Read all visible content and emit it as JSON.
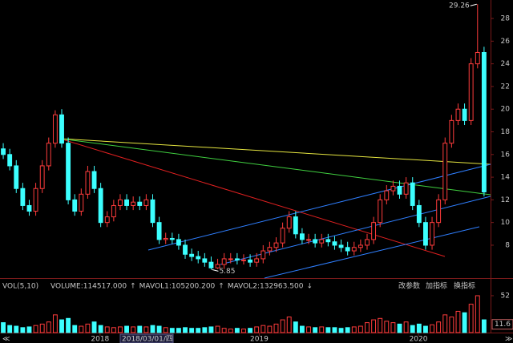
{
  "chart_data": {
    "type": "candlestick",
    "up_color": "#ff3c3c",
    "down_color": "#3cffff",
    "categories": [
      null,
      null,
      null,
      null,
      null,
      null,
      null,
      null,
      null,
      null,
      null,
      null,
      null,
      null,
      null,
      null,
      null,
      null,
      null,
      null,
      null,
      null,
      null,
      null,
      null,
      null,
      null,
      null,
      null,
      null,
      null,
      null,
      null,
      null,
      null,
      null,
      null,
      null,
      null,
      null,
      null,
      null,
      null,
      null,
      null,
      null,
      null,
      null,
      null,
      null,
      null,
      null,
      null,
      null,
      null,
      null,
      null,
      null,
      null,
      null,
      null,
      null,
      null,
      null,
      null,
      null,
      null,
      null,
      null,
      null,
      null,
      null,
      null,
      null,
      null
    ],
    "open": [
      16.5,
      16,
      15,
      13,
      11.5,
      11,
      13,
      15,
      17,
      19.5,
      17,
      12,
      11,
      12.5,
      14.5,
      13,
      10,
      10.5,
      11.5,
      12,
      11.5,
      11.8,
      11.5,
      12,
      10,
      8.5,
      8.6,
      8.5,
      8,
      7.2,
      7,
      6.8,
      6.5,
      6,
      6.3,
      6.8,
      6.8,
      6.7,
      6.7,
      6.5,
      6.8,
      7.5,
      7.8,
      8.2,
      9.5,
      10.5,
      9,
      8.5,
      8.5,
      8.2,
      8.5,
      8.3,
      8,
      7.8,
      7.5,
      7.8,
      8,
      8.5,
      10,
      12,
      12.8,
      13.2,
      12.5,
      13.5,
      11.5,
      10,
      8,
      10,
      12,
      17,
      19,
      20,
      19,
      24,
      25
    ],
    "high": [
      17,
      16.5,
      15.5,
      13.5,
      12,
      13.5,
      15.5,
      17.5,
      19.9,
      20,
      17.5,
      12.5,
      13,
      15,
      15,
      13.5,
      11,
      12,
      12.5,
      12.5,
      12.3,
      12.3,
      12.5,
      12.5,
      10.5,
      9.1,
      9.1,
      9,
      8.5,
      7.7,
      7.5,
      7.3,
      7,
      6.8,
      7.3,
      7.3,
      7.3,
      7.2,
      7.2,
      7.3,
      8,
      8.3,
      8.7,
      10,
      11,
      11,
      9.5,
      9,
      9,
      9,
      9,
      8.8,
      8.5,
      8.3,
      8.3,
      8.5,
      9,
      10.5,
      12.5,
      13.3,
      13.7,
      13.7,
      14,
      14,
      12,
      10.5,
      10.5,
      12.5,
      17.5,
      19.5,
      20.5,
      20.5,
      24.5,
      29.26,
      25.5
    ],
    "low": [
      15.6,
      14.6,
      12.6,
      11.1,
      10.6,
      10.6,
      12.6,
      14.6,
      16.6,
      16.6,
      11.6,
      10.6,
      10.6,
      12.1,
      12.6,
      9.6,
      9.6,
      10.1,
      11.1,
      11.1,
      11.1,
      11.1,
      11.1,
      9.6,
      8.1,
      8.1,
      8.1,
      7.6,
      6.8,
      6.6,
      6.4,
      6.1,
      5.85,
      5.9,
      5.9,
      6.4,
      6.3,
      6.3,
      6.1,
      6.1,
      6.4,
      7.1,
      7.4,
      7.8,
      9.1,
      8.6,
      8.1,
      8.1,
      7.8,
      7.8,
      7.9,
      7.6,
      7.4,
      7.1,
      7.1,
      7.4,
      7.6,
      8.1,
      9.6,
      11.6,
      12.4,
      12.1,
      12.1,
      11.1,
      9.6,
      7.6,
      7.6,
      9.6,
      11.6,
      16.6,
      18.6,
      18.6,
      18.6,
      23.6,
      12.3
    ],
    "close": [
      16,
      15,
      13,
      11.5,
      11,
      13,
      15,
      17,
      19.5,
      17,
      12,
      11,
      12.5,
      14.5,
      13,
      10,
      10.5,
      11.5,
      12,
      11.5,
      11.8,
      11.5,
      12,
      10,
      8.5,
      8.6,
      8.5,
      8,
      7.2,
      7,
      6.8,
      6.5,
      6,
      6.3,
      6.8,
      6.8,
      6.7,
      6.7,
      6.5,
      6.8,
      7.5,
      7.8,
      8.2,
      9.5,
      10.5,
      9,
      8.5,
      8.5,
      8.2,
      8.5,
      8.3,
      8,
      7.8,
      7.5,
      7.8,
      8,
      8.5,
      10,
      12,
      12.8,
      13.2,
      12.5,
      13.5,
      11.5,
      10,
      8,
      10,
      12,
      17,
      19,
      20,
      19,
      24,
      25,
      12.7
    ],
    "xlim": [
      -0.5,
      75
    ],
    "xticks": [
      {
        "value": 14.9,
        "label": "2018"
      },
      {
        "value": 39.4,
        "label": "2019"
      },
      {
        "value": 63.9,
        "label": "2020"
      }
    ],
    "cursor_label": "2018/03/01/四",
    "ylim": [
      5.24,
      29.63
    ],
    "yticks": [
      8,
      10,
      12,
      14,
      16,
      18,
      20,
      22,
      24,
      26,
      28
    ],
    "max_label": 29.26,
    "min_label": 5.85,
    "volume": {
      "indicator": "VOL(5,10)",
      "legend": [
        {
          "text": "VOLUME:114517.000",
          "arrow": "↑",
          "color": "#ffffff"
        },
        {
          "text": "MAVOL1:105200.200",
          "arrow": "↑",
          "color": "#ffff00"
        },
        {
          "text": "MAVOL2:132963.500",
          "arrow": "↓",
          "color": "#ff44ff"
        }
      ],
      "values": [
        14,
        10,
        9,
        7,
        8,
        10,
        12,
        15,
        25,
        18,
        20,
        10,
        9,
        12,
        15,
        10,
        8,
        7,
        8,
        9,
        8,
        9,
        8,
        10,
        9,
        7,
        6,
        6,
        7,
        6,
        6,
        7,
        8,
        9,
        6,
        5,
        6,
        5,
        6,
        8,
        10,
        9,
        12,
        18,
        22,
        15,
        9,
        8,
        7,
        8,
        7,
        7,
        6,
        7,
        8,
        9,
        14,
        18,
        20,
        16,
        14,
        12,
        15,
        10,
        12,
        9,
        11,
        15,
        25,
        22,
        30,
        28,
        40,
        52,
        18
      ],
      "ylim": [
        0,
        56.5
      ],
      "yticks": [
        52
      ],
      "current": 11.6
    },
    "buttons": [
      "改参数",
      "加指标",
      "换指标"
    ],
    "nav": [
      "≪",
      "≫"
    ]
  }
}
